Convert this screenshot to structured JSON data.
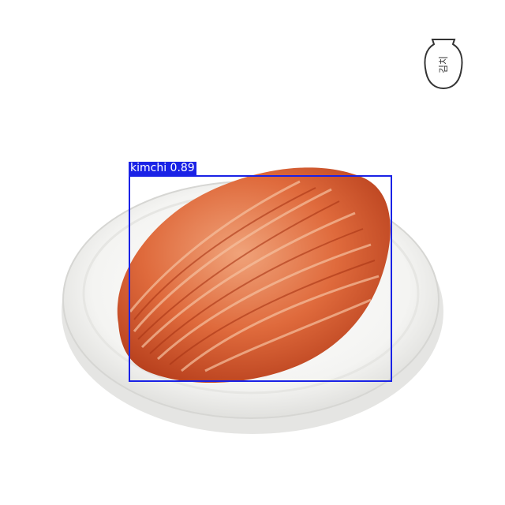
{
  "detection": {
    "label": "kimchi 0.89",
    "box_color": "#1a22e6"
  },
  "logo": {
    "text": "김치"
  }
}
